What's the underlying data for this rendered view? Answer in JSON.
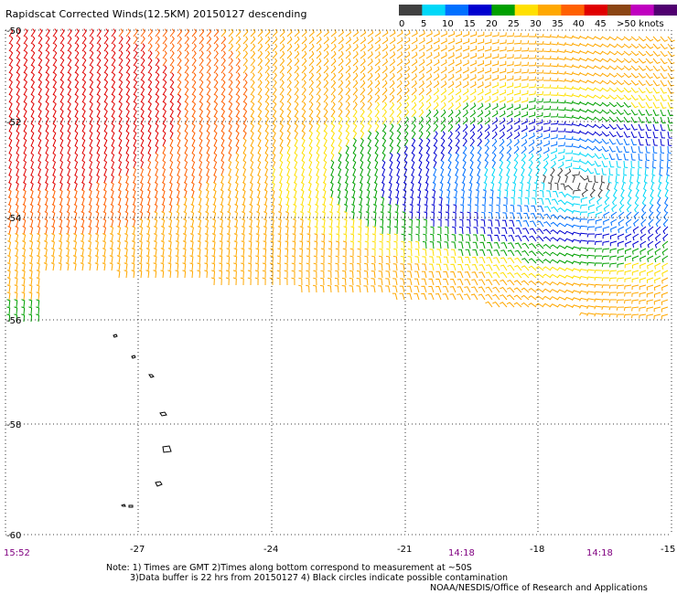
{
  "title": "Rapidscat Corrected Winds(12.5KM) 20150127 descending",
  "scale": {
    "labels": [
      "0",
      "5",
      "10",
      "15",
      "20",
      "25",
      "30",
      "35",
      "40",
      "45",
      ">50 knots"
    ],
    "colors": [
      "#404040",
      "#00d8f8",
      "#0070ff",
      "#0000d0",
      "#00a000",
      "#ffe000",
      "#ffa800",
      "#ff6000",
      "#e00000",
      "#8b4513",
      "#c000c0",
      "#500070"
    ]
  },
  "lat_labels": [
    "-50",
    "-52",
    "-54",
    "-56",
    "-58",
    "-60"
  ],
  "lon_labels": [
    "-27",
    "-24",
    "-21",
    "-18",
    "-15"
  ],
  "times": [
    "15:52",
    "14:18",
    "14:18"
  ],
  "notes": {
    "line1": "Note: 1) Times are GMT 2)Times along bottom correspond to measurement at ~50S",
    "line2": "3)Data buffer is 22 hrs from 20150127 4) Black circles indicate possible contamination"
  },
  "credit": "NOAA/NESDIS/Office of Research and Applications",
  "colors": {
    "time_label": "#800080",
    "grid": "#000000"
  }
}
